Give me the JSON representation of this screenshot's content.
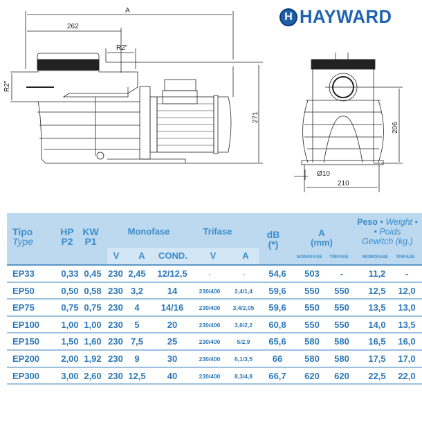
{
  "brand": {
    "logo_text": "HAYWARD",
    "logo_mark": "H"
  },
  "drawing": {
    "side_view": {
      "dim_total": "A",
      "dim_inlet": "262",
      "dim_outlet": "R2\"",
      "dim_inlet_side": "R2\"",
      "dim_height": "271"
    },
    "front_view": {
      "dim_height": "206",
      "dim_hole": "Ø10",
      "dim_width": "210"
    }
  },
  "table": {
    "headers": {
      "tipo": "Tipo",
      "type": "Type",
      "hp": "HP",
      "p2": "P2",
      "kw": "KW",
      "p1": "P1",
      "monofase": "Monofase",
      "trifase": "Trifase",
      "mono_v": "V",
      "mono_a": "A",
      "mono_cond": "COND.",
      "tri_v": "V",
      "tri_a": "A",
      "db": "dB",
      "db_note": "(*)",
      "a": "A",
      "a_unit": "(mm)",
      "peso": "Peso •",
      "weight": "Weight •",
      "poids": "• Poids",
      "gewitch": "Gewitch (kg.)",
      "a_mono": "MONOFASE",
      "a_tri": "TRIFASE",
      "peso_mono": "MONOFASE",
      "peso_tri": "TRIFASE"
    },
    "rows": [
      [
        "EP33",
        "0,33",
        "0,45",
        "230",
        "2,45",
        "12/12,5",
        "-",
        "-",
        "54,6",
        "503",
        "-",
        "11,2",
        "-"
      ],
      [
        "EP50",
        "0,50",
        "0,58",
        "230",
        "3,2",
        "14",
        "230/400",
        "2,4/1,4",
        "59,6",
        "550",
        "550",
        "12,5",
        "12,0"
      ],
      [
        "EP75",
        "0,75",
        "0,75",
        "230",
        "4",
        "14/16",
        "230/400",
        "3,4/2,05",
        "59,6",
        "550",
        "550",
        "13,5",
        "13,0"
      ],
      [
        "EP100",
        "1,00",
        "1,00",
        "230",
        "5",
        "20",
        "230/400",
        "3,6/2,2",
        "60,8",
        "550",
        "550",
        "14,0",
        "13,5"
      ],
      [
        "EP150",
        "1,50",
        "1,60",
        "230",
        "7,5",
        "25",
        "230/400",
        "5/2,9",
        "65,6",
        "580",
        "580",
        "16,5",
        "16,0"
      ],
      [
        "EP200",
        "2,00",
        "1,92",
        "230",
        "9",
        "30",
        "230/400",
        "6,1/3,5",
        "66",
        "580",
        "580",
        "17,5",
        "17,0"
      ],
      [
        "EP300",
        "3,00",
        "2,60",
        "230",
        "12,5",
        "40",
        "230/400",
        "8,3/4,8",
        "66,7",
        "620",
        "620",
        "22,5",
        "22,0"
      ]
    ]
  },
  "colors": {
    "header_bg": "#bdd9f0",
    "header_text": "#3a8dcb",
    "cell_text": "#2c78b8",
    "brand": "#1f63b0"
  }
}
